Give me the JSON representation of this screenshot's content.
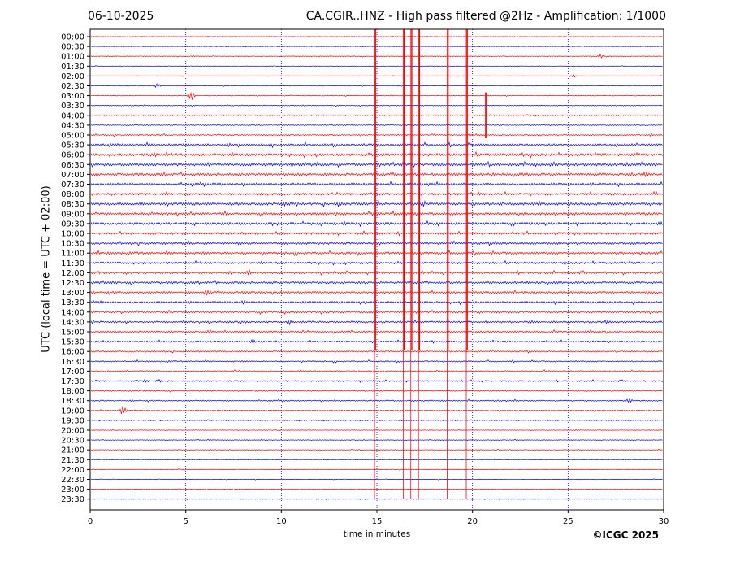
{
  "header": {
    "date": "06-10-2025",
    "title": "CA.CGIR..HNZ - High pass filtered @2Hz - Amplification: 1/1000"
  },
  "footer": {
    "credit": "©ICGC 2025"
  },
  "chart_data": {
    "type": "line",
    "xlabel": "time in minutes",
    "ylabel": "UTC (local time = UTC + 02:00)",
    "xlim": [
      0,
      30
    ],
    "x_ticks": [
      "0",
      "5",
      "10",
      "15",
      "20",
      "25",
      "30"
    ],
    "grid": "vertical dotted lines every 5 minutes",
    "colors": {
      "red_rows": "#ff0000",
      "blue_rows": "#0000ff",
      "frame": "#000000",
      "grid": "#0000aa"
    },
    "row_labels": [
      "00:00",
      "00:30",
      "01:00",
      "01:30",
      "02:00",
      "02:30",
      "03:00",
      "03:30",
      "04:00",
      "04:30",
      "05:00",
      "05:30",
      "06:00",
      "06:30",
      "07:00",
      "07:30",
      "08:00",
      "08:30",
      "09:00",
      "09:30",
      "10:00",
      "10:30",
      "11:00",
      "11:30",
      "12:00",
      "12:30",
      "13:00",
      "13:30",
      "14:00",
      "14:30",
      "15:00",
      "15:30",
      "16:00",
      "16:30",
      "17:00",
      "17:30",
      "18:00",
      "18:30",
      "19:00",
      "19:30",
      "20:00",
      "20:30",
      "21:00",
      "21:30",
      "22:00",
      "22:30",
      "23:00",
      "23:30"
    ],
    "row_colors": [
      "red",
      "blue",
      "red",
      "blue",
      "red",
      "blue",
      "red",
      "blue",
      "red",
      "blue",
      "red",
      "blue",
      "red",
      "blue",
      "red",
      "blue",
      "red",
      "blue",
      "red",
      "blue",
      "red",
      "blue",
      "red",
      "blue",
      "red",
      "blue",
      "red",
      "blue",
      "red",
      "blue",
      "red",
      "blue",
      "red",
      "blue",
      "red",
      "blue",
      "red",
      "blue",
      "red",
      "blue",
      "red",
      "blue",
      "red",
      "blue",
      "red",
      "blue",
      "red",
      "blue"
    ],
    "noise_level": [
      0.3,
      0.3,
      0.4,
      0.3,
      0.35,
      0.4,
      0.4,
      0.5,
      0.6,
      0.6,
      0.8,
      1.4,
      1.6,
      1.6,
      1.6,
      1.5,
      1.4,
      1.6,
      1.5,
      1.5,
      1.4,
      1.4,
      1.4,
      1.3,
      1.3,
      1.4,
      1.3,
      1.3,
      1.2,
      1.2,
      1.1,
      1.0,
      0.9,
      0.8,
      0.8,
      0.8,
      0.7,
      0.8,
      0.6,
      0.5,
      0.4,
      0.4,
      0.4,
      0.35,
      0.35,
      0.3,
      0.35,
      0.3
    ],
    "vertical_traces": [
      {
        "minute": 14.9,
        "row_start": 0,
        "row_end": 47
      },
      {
        "minute": 16.4,
        "row_start": 0,
        "row_end": 47
      },
      {
        "minute": 16.8,
        "row_start": 0,
        "row_end": 47
      },
      {
        "minute": 17.2,
        "row_start": 0,
        "row_end": 47
      },
      {
        "minute": 18.7,
        "row_start": 0,
        "row_end": 47
      },
      {
        "minute": 19.7,
        "row_start": 0,
        "row_end": 47
      },
      {
        "minute": 20.7,
        "row_start": 6,
        "row_end": 10
      }
    ],
    "bursts": [
      {
        "row": 2,
        "minute": 26.7,
        "amplitude": 2.5
      },
      {
        "row": 4,
        "minute": 25.3,
        "amplitude": 2
      },
      {
        "row": 5,
        "minute": 3.5,
        "amplitude": 3
      },
      {
        "row": 6,
        "minute": 5.3,
        "amplitude": 6
      },
      {
        "row": 11,
        "minute": 7.3,
        "amplitude": 3
      },
      {
        "row": 12,
        "minute": 3.4,
        "amplitude": 3
      },
      {
        "row": 12,
        "minute": 22.6,
        "amplitude": 3
      },
      {
        "row": 13,
        "minute": 6.2,
        "amplitude": 3
      },
      {
        "row": 13,
        "minute": 26.5,
        "amplitude": 3
      },
      {
        "row": 14,
        "minute": 29.0,
        "amplitude": 4
      },
      {
        "row": 15,
        "minute": 26.2,
        "amplitude": 3
      },
      {
        "row": 17,
        "minute": 2.7,
        "amplitude": 3
      },
      {
        "row": 17,
        "minute": 10.2,
        "amplitude": 4
      },
      {
        "row": 19,
        "minute": 13.3,
        "amplitude": 3
      },
      {
        "row": 19,
        "minute": 29.8,
        "amplitude": 4
      },
      {
        "row": 21,
        "minute": 7.8,
        "amplitude": 3
      },
      {
        "row": 24,
        "minute": 7.3,
        "amplitude": 3
      },
      {
        "row": 24,
        "minute": 8.3,
        "amplitude": 4
      },
      {
        "row": 26,
        "minute": 6.1,
        "amplitude": 5
      },
      {
        "row": 27,
        "minute": 8.0,
        "amplitude": 3
      },
      {
        "row": 29,
        "minute": 10.4,
        "amplitude": 4
      },
      {
        "row": 29,
        "minute": 27.0,
        "amplitude": 3
      },
      {
        "row": 30,
        "minute": 6.2,
        "amplitude": 3
      },
      {
        "row": 31,
        "minute": 8.5,
        "amplitude": 3
      },
      {
        "row": 35,
        "minute": 2.9,
        "amplitude": 3
      },
      {
        "row": 35,
        "minute": 3.6,
        "amplitude": 3
      },
      {
        "row": 37,
        "minute": 28.2,
        "amplitude": 3
      },
      {
        "row": 38,
        "minute": 1.7,
        "amplitude": 6
      }
    ]
  }
}
